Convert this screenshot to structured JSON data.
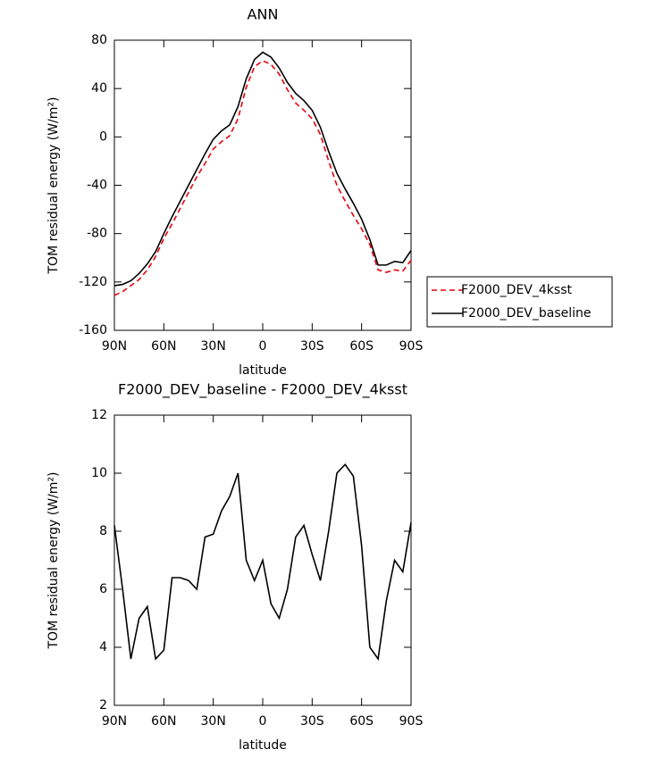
{
  "chart_data": [
    {
      "type": "line",
      "title": "ANN",
      "x_label": "latitude",
      "y_label": "TOM residual energy (W/m²)",
      "x": [
        90,
        85,
        80,
        75,
        70,
        65,
        60,
        55,
        50,
        45,
        40,
        35,
        30,
        25,
        20,
        15,
        10,
        5,
        0,
        -5,
        -10,
        -15,
        -20,
        -25,
        -30,
        -35,
        -40,
        -45,
        -50,
        -55,
        -60,
        -65,
        -70,
        -75,
        -80,
        -85,
        -90
      ],
      "series": [
        {
          "name": "F2000_DEV_4ksst",
          "color": "#e8000b",
          "line_style": "dashed",
          "values": [
            -131,
            -128,
            -123,
            -118,
            -110,
            -99,
            -84,
            -72,
            -59,
            -46,
            -33,
            -22,
            -10,
            -4,
            1,
            15,
            41,
            58,
            63,
            60,
            52,
            39,
            28,
            22,
            15,
            2,
            -20,
            -40,
            -53,
            -65,
            -76,
            -89,
            -110,
            -112,
            -110,
            -111,
            -102
          ]
        },
        {
          "name": "F2000_DEV_baseline",
          "color": "#000000",
          "line_style": "solid",
          "values": [
            -123,
            -122,
            -119,
            -113,
            -105,
            -95,
            -80,
            -66,
            -53,
            -40,
            -27,
            -14,
            -2,
            5,
            10,
            25,
            48,
            64,
            70,
            66,
            57,
            45,
            36,
            30,
            22,
            8,
            -12,
            -30,
            -43,
            -55,
            -68,
            -85,
            -106,
            -106,
            -103,
            -104,
            -94
          ]
        }
      ],
      "xlim": [
        90,
        -90
      ],
      "xticks": [
        {
          "value": 90,
          "label": "90N"
        },
        {
          "value": 60,
          "label": "60N"
        },
        {
          "value": 30,
          "label": "30N"
        },
        0,
        {
          "value": -30,
          "label": "30S"
        },
        {
          "value": -60,
          "label": "60S"
        },
        {
          "value": -90,
          "label": "90S"
        }
      ],
      "ylim": [
        -160,
        80
      ],
      "yticks": [
        -160,
        -120,
        -80,
        -40,
        0,
        40,
        80
      ],
      "legend": "outside-right"
    },
    {
      "type": "line",
      "title": "F2000_DEV_baseline - F2000_DEV_4ksst",
      "x_label": "latitude",
      "y_label": "TOM residual energy (W/m²)",
      "x": [
        90,
        85,
        80,
        75,
        70,
        65,
        60,
        55,
        50,
        45,
        40,
        35,
        30,
        25,
        20,
        15,
        10,
        5,
        0,
        -5,
        -10,
        -15,
        -20,
        -25,
        -30,
        -35,
        -40,
        -45,
        -50,
        -55,
        -60,
        -65,
        -70,
        -75,
        -80,
        -85,
        -90
      ],
      "color": "#000000",
      "values": [
        8.2,
        6.0,
        3.6,
        5.0,
        5.4,
        3.6,
        3.9,
        6.4,
        6.4,
        6.3,
        6.0,
        7.8,
        7.9,
        8.7,
        9.2,
        10.0,
        7.0,
        6.3,
        7.0,
        5.5,
        5.0,
        6.0,
        7.8,
        8.2,
        7.2,
        6.3,
        8.0,
        10.0,
        10.3,
        9.9,
        7.5,
        4.0,
        3.6,
        5.6,
        7.0,
        6.6,
        8.3
      ],
      "xlim": [
        90,
        -90
      ],
      "xticks": [
        {
          "value": 90,
          "label": "90N"
        },
        {
          "value": 60,
          "label": "60N"
        },
        {
          "value": 30,
          "label": "30N"
        },
        0,
        {
          "value": -30,
          "label": "30S"
        },
        {
          "value": -60,
          "label": "60S"
        },
        {
          "value": -90,
          "label": "90S"
        }
      ],
      "ylim": [
        2,
        12
      ],
      "yticks": [
        2,
        4,
        6,
        8,
        10,
        12
      ]
    }
  ]
}
